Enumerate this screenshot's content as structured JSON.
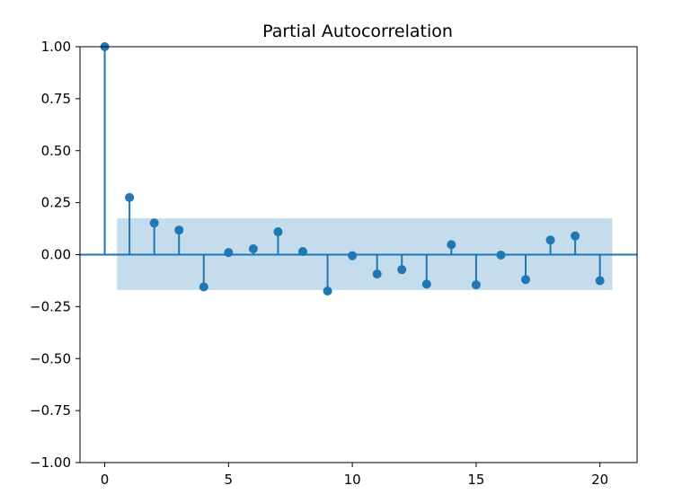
{
  "chart_data": {
    "type": "stem",
    "title": "Partial Autocorrelation",
    "xlabel": "",
    "ylabel": "",
    "xlim": [
      -1,
      21.5
    ],
    "ylim": [
      -1.0,
      1.0
    ],
    "x_ticks": [
      0,
      5,
      10,
      15,
      20
    ],
    "x_tick_labels": [
      "0",
      "5",
      "10",
      "15",
      "20"
    ],
    "y_ticks": [
      1.0,
      0.75,
      0.5,
      0.25,
      0.0,
      -0.25,
      -0.5,
      -0.75,
      -1.0
    ],
    "y_tick_labels": [
      "1.00",
      "0.75",
      "0.50",
      "0.25",
      "0.00",
      "−0.25",
      "−0.50",
      "−0.75",
      "−1.00"
    ],
    "grid": false,
    "confidence_band": {
      "x_range": [
        0.5,
        20.5
      ],
      "lower": -0.17,
      "upper": 0.175
    },
    "lags": [
      0,
      1,
      2,
      3,
      4,
      5,
      6,
      7,
      8,
      9,
      10,
      11,
      12,
      13,
      14,
      15,
      16,
      17,
      18,
      19,
      20
    ],
    "values": [
      1.0,
      0.275,
      0.152,
      0.118,
      -0.155,
      0.01,
      0.028,
      0.11,
      0.015,
      -0.175,
      -0.005,
      -0.093,
      -0.072,
      -0.142,
      0.048,
      -0.145,
      -0.002,
      -0.12,
      0.07,
      0.09,
      -0.125
    ],
    "colors": {
      "stem": "#1f77b4",
      "band": "#c5dcec",
      "axes": "#000000"
    }
  }
}
